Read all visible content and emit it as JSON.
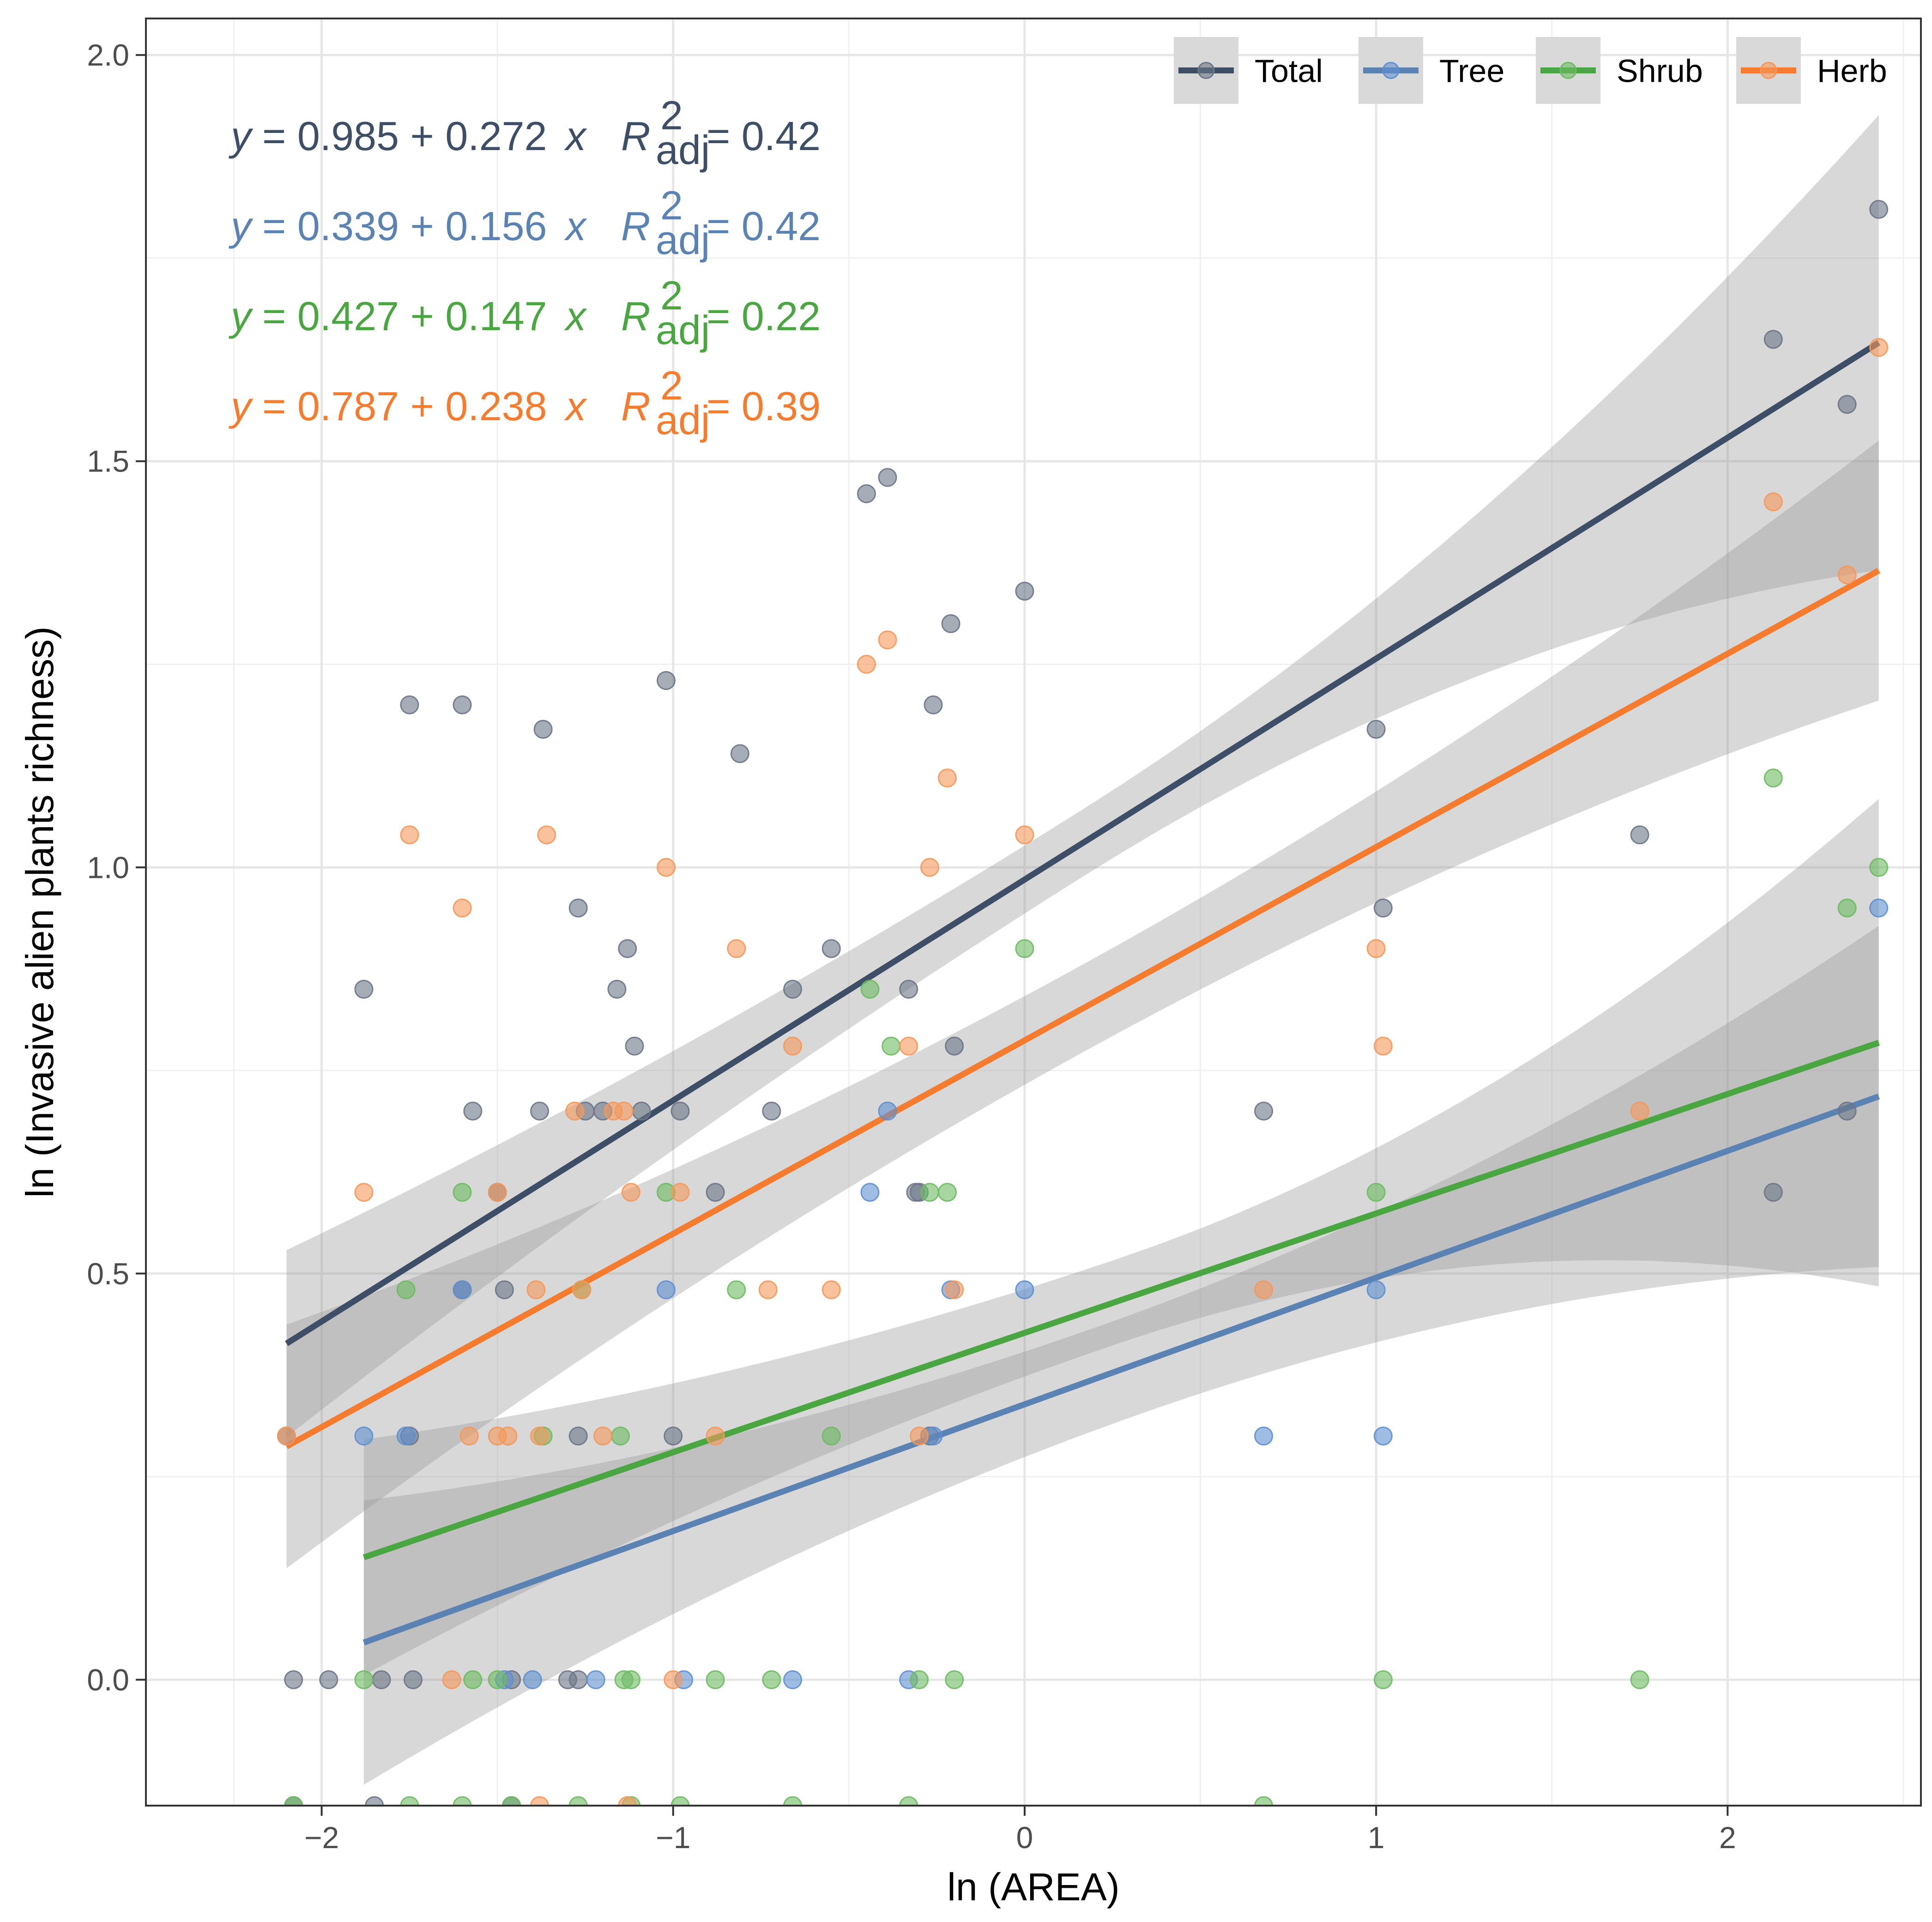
{
  "chart_data": {
    "type": "scatter",
    "xlabel": "ln (AREA)",
    "ylabel": "ln (Invasive alien plants richness)",
    "xlim": [
      -2.5,
      2.55
    ],
    "ylim": [
      -0.155,
      2.045
    ],
    "x_ticks": [
      -2,
      -1,
      0,
      1,
      2
    ],
    "y_ticks": [
      0.0,
      0.5,
      1.0,
      1.5,
      2.0
    ],
    "x_tick_labels": [
      "−2",
      "−1",
      "0",
      "1",
      "2"
    ],
    "y_tick_labels": [
      "0.0",
      "0.5",
      "1.0",
      "1.5",
      "2.0"
    ],
    "grid": true,
    "legend_position": "top-right",
    "legend": [
      "Total",
      "Tree",
      "Shrub",
      "Herb"
    ],
    "equations": [
      {
        "series": "Total",
        "y": "y",
        "eq": "= 0.985 + 0.272",
        "x": "x",
        "R": "R",
        "sup": "2",
        "sub": "adj",
        "r2": "= 0.42"
      },
      {
        "series": "Tree",
        "y": "y",
        "eq": "= 0.339 + 0.156",
        "x": "x",
        "R": "R",
        "sup": "2",
        "sub": "adj",
        "r2": "= 0.42"
      },
      {
        "series": "Shrub",
        "y": "y",
        "eq": "= 0.427 + 0.147",
        "x": "x",
        "R": "R",
        "sup": "2",
        "sub": "adj",
        "r2": "= 0.22"
      },
      {
        "series": "Herb",
        "y": "y",
        "eq": "= 0.787 + 0.238",
        "x": "x",
        "R": "R",
        "sup": "2",
        "sub": "adj",
        "r2": "= 0.39"
      }
    ],
    "series": [
      {
        "name": "Total",
        "color": "#3d4e66",
        "point_color": "#6b7687",
        "intercept": 0.985,
        "slope": 0.272,
        "x_range": [
          -2.1,
          2.43
        ],
        "band_low": [
          0.34,
          1.39
        ],
        "band_high": [
          0.57,
          1.95
        ],
        "points": [
          [
            -2.1,
            0.3
          ],
          [
            -1.88,
            0.85
          ],
          [
            -1.75,
            1.2
          ],
          [
            -1.6,
            1.2
          ],
          [
            -1.57,
            0.7
          ],
          [
            -1.5,
            0.6
          ],
          [
            -1.38,
            0.7
          ],
          [
            -1.37,
            1.17
          ],
          [
            -1.27,
            0.95
          ],
          [
            -1.25,
            0.7
          ],
          [
            -1.2,
            0.7
          ],
          [
            -1.16,
            0.85
          ],
          [
            -1.13,
            0.9
          ],
          [
            -1.11,
            0.78
          ],
          [
            -1.09,
            0.7
          ],
          [
            -1.02,
            1.23
          ],
          [
            -0.98,
            0.7
          ],
          [
            -0.88,
            0.6
          ],
          [
            -0.81,
            1.14
          ],
          [
            -0.72,
            0.7
          ],
          [
            -0.66,
            0.85
          ],
          [
            -0.55,
            0.9
          ],
          [
            -0.45,
            1.46
          ],
          [
            -0.39,
            1.48
          ],
          [
            -0.33,
            0.85
          ],
          [
            -0.31,
            0.6
          ],
          [
            -0.26,
            1.2
          ],
          [
            -0.21,
            1.3
          ],
          [
            -0.2,
            0.78
          ],
          [
            0.0,
            1.34
          ],
          [
            0.68,
            0.7
          ],
          [
            1.0,
            1.17
          ],
          [
            1.02,
            0.95
          ],
          [
            1.75,
            1.04
          ],
          [
            2.13,
            1.65
          ],
          [
            2.13,
            0.6
          ],
          [
            2.34,
            1.57
          ],
          [
            2.34,
            0.7
          ],
          [
            2.43,
            1.81
          ],
          [
            -1.75,
            0.3
          ],
          [
            -1.6,
            0.48
          ],
          [
            -1.48,
            0.48
          ],
          [
            -1.27,
            0.3
          ],
          [
            -1.0,
            0.3
          ],
          [
            -0.3,
            0.6
          ],
          [
            -0.27,
            0.3
          ],
          [
            -2.08,
            0.0
          ],
          [
            -1.98,
            0.0
          ],
          [
            -1.83,
            0.0
          ],
          [
            -1.74,
            0.0
          ],
          [
            -1.46,
            0.0
          ],
          [
            -1.3,
            0.0
          ],
          [
            -1.27,
            0.0
          ],
          [
            -2.08,
            -0.155
          ],
          [
            -1.85,
            -0.155
          ],
          [
            -1.46,
            -0.155
          ]
        ]
      },
      {
        "name": "Tree",
        "color": "#5a82b2",
        "point_color": "#5f8fd0",
        "intercept": 0.339,
        "slope": 0.156,
        "x_range": [
          -1.88,
          2.43
        ],
        "band_low": [
          -0.06,
          0.48
        ],
        "band_high": [
          0.29,
          0.9
        ],
        "points": [
          [
            -1.88,
            0.3
          ],
          [
            -1.76,
            0.3
          ],
          [
            -1.6,
            0.48
          ],
          [
            -1.02,
            0.48
          ],
          [
            -0.44,
            0.6
          ],
          [
            -0.39,
            0.7
          ],
          [
            -0.26,
            0.3
          ],
          [
            -0.21,
            0.48
          ],
          [
            0.0,
            0.48
          ],
          [
            0.68,
            0.3
          ],
          [
            1.0,
            0.48
          ],
          [
            1.02,
            0.3
          ],
          [
            2.43,
            0.95
          ],
          [
            -1.48,
            0.0
          ],
          [
            -1.4,
            0.0
          ],
          [
            -1.22,
            0.0
          ],
          [
            -0.97,
            0.0
          ],
          [
            -0.66,
            0.0
          ],
          [
            -0.33,
            0.0
          ]
        ]
      },
      {
        "name": "Shrub",
        "color": "#4aa640",
        "point_color": "#6dbb62",
        "intercept": 0.427,
        "slope": 0.147,
        "x_range": [
          -1.88,
          2.43
        ],
        "band_low": [
          0.02,
          0.49
        ],
        "band_high": [
          0.31,
          1.09
        ],
        "points": [
          [
            -1.76,
            0.48
          ],
          [
            -1.6,
            0.6
          ],
          [
            -1.37,
            0.3
          ],
          [
            -1.26,
            0.48
          ],
          [
            -1.15,
            0.3
          ],
          [
            -1.02,
            0.6
          ],
          [
            -0.82,
            0.48
          ],
          [
            -0.55,
            0.3
          ],
          [
            -0.44,
            0.85
          ],
          [
            -0.38,
            0.78
          ],
          [
            -0.27,
            0.6
          ],
          [
            -0.22,
            0.6
          ],
          [
            0.0,
            0.9
          ],
          [
            1.0,
            0.6
          ],
          [
            2.13,
            1.11
          ],
          [
            2.34,
            0.95
          ],
          [
            2.43,
            1.0
          ],
          [
            -1.88,
            0.0
          ],
          [
            -1.57,
            0.0
          ],
          [
            -1.5,
            0.0
          ],
          [
            -1.14,
            0.0
          ],
          [
            -1.12,
            0.0
          ],
          [
            -0.88,
            0.0
          ],
          [
            -0.72,
            0.0
          ],
          [
            -0.3,
            0.0
          ],
          [
            -0.2,
            0.0
          ],
          [
            1.02,
            0.0
          ],
          [
            1.75,
            0.0
          ],
          [
            -2.08,
            -0.155
          ],
          [
            -1.75,
            -0.155
          ],
          [
            -1.6,
            -0.155
          ],
          [
            -1.46,
            -0.155
          ],
          [
            -1.27,
            -0.155
          ],
          [
            -1.12,
            -0.155
          ],
          [
            -0.98,
            -0.155
          ],
          [
            -0.66,
            -0.155
          ],
          [
            -0.33,
            -0.155
          ],
          [
            0.68,
            -0.155
          ]
        ]
      },
      {
        "name": "Herb",
        "color": "#f57c2e",
        "point_color": "#f5985a",
        "intercept": 0.787,
        "slope": 0.238,
        "x_range": [
          -2.1,
          2.43
        ],
        "band_low": [
          0.14,
          1.2
        ],
        "band_high": [
          0.44,
          1.52
        ],
        "points": [
          [
            -2.1,
            0.3
          ],
          [
            -1.88,
            0.6
          ],
          [
            -1.75,
            1.04
          ],
          [
            -1.6,
            0.95
          ],
          [
            -1.58,
            0.3
          ],
          [
            -1.5,
            0.3
          ],
          [
            -1.47,
            0.3
          ],
          [
            -1.5,
            0.6
          ],
          [
            -1.39,
            0.48
          ],
          [
            -1.38,
            0.3
          ],
          [
            -1.36,
            1.04
          ],
          [
            -1.28,
            0.7
          ],
          [
            -1.26,
            0.48
          ],
          [
            -1.2,
            0.3
          ],
          [
            -1.17,
            0.7
          ],
          [
            -1.14,
            0.7
          ],
          [
            -1.12,
            0.6
          ],
          [
            -1.02,
            1.0
          ],
          [
            -0.98,
            0.6
          ],
          [
            -0.88,
            0.3
          ],
          [
            -0.82,
            0.9
          ],
          [
            -0.73,
            0.48
          ],
          [
            -0.66,
            0.78
          ],
          [
            -0.55,
            0.48
          ],
          [
            -0.45,
            1.25
          ],
          [
            -0.39,
            1.28
          ],
          [
            -0.33,
            0.78
          ],
          [
            -0.3,
            0.3
          ],
          [
            -0.27,
            1.0
          ],
          [
            -0.22,
            1.11
          ],
          [
            -0.2,
            0.48
          ],
          [
            0.0,
            1.04
          ],
          [
            0.68,
            0.48
          ],
          [
            1.0,
            0.9
          ],
          [
            1.02,
            0.78
          ],
          [
            1.75,
            0.7
          ],
          [
            2.13,
            1.45
          ],
          [
            2.34,
            1.36
          ],
          [
            2.43,
            1.64
          ],
          [
            -1.63,
            0.0
          ],
          [
            -1.0,
            0.0
          ],
          [
            -1.13,
            -0.155
          ],
          [
            -1.38,
            -0.155
          ]
        ]
      }
    ]
  }
}
